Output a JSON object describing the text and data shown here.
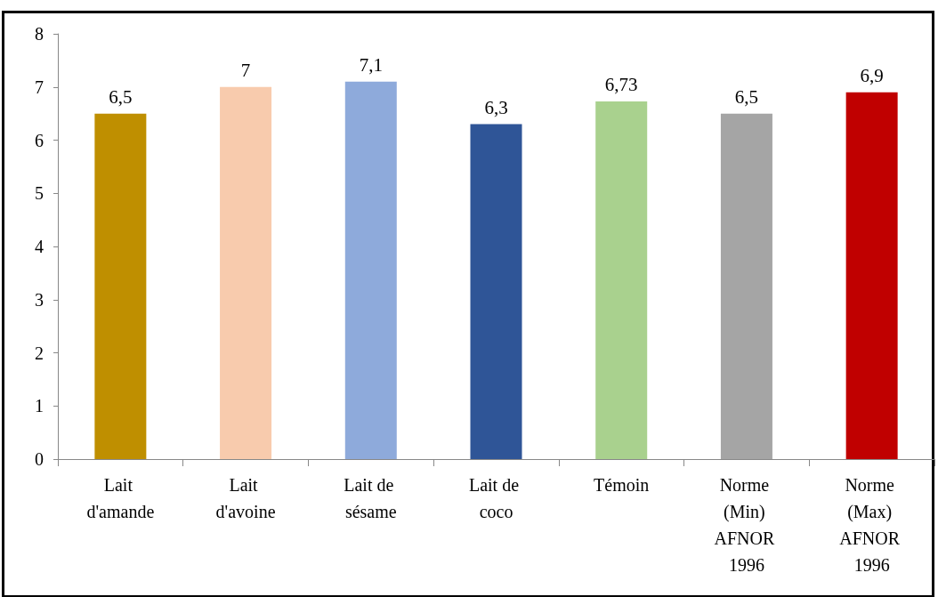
{
  "chart_data": {
    "type": "bar",
    "categories": [
      "Lait d'amande",
      "Lait d'avoine",
      "Lait de sésame",
      "Lait de coco",
      "Témoin",
      "Norme (Min) AFNOR 1996",
      "Norme (Max) AFNOR 1996"
    ],
    "values": [
      6.5,
      7,
      7.1,
      6.3,
      6.73,
      6.5,
      6.9
    ],
    "value_labels": [
      "6,5",
      "7",
      "7,1",
      "6,3",
      "6,73",
      "6,5",
      "6,9"
    ],
    "colors": [
      "#bf8f00",
      "#f8cbad",
      "#8eaadb",
      "#2f5597",
      "#a9d18e",
      "#a5a5a5",
      "#c00000"
    ],
    "ylim": [
      0,
      8
    ],
    "yticks": [
      0,
      1,
      2,
      3,
      4,
      5,
      6,
      7,
      8
    ],
    "grid": false
  }
}
